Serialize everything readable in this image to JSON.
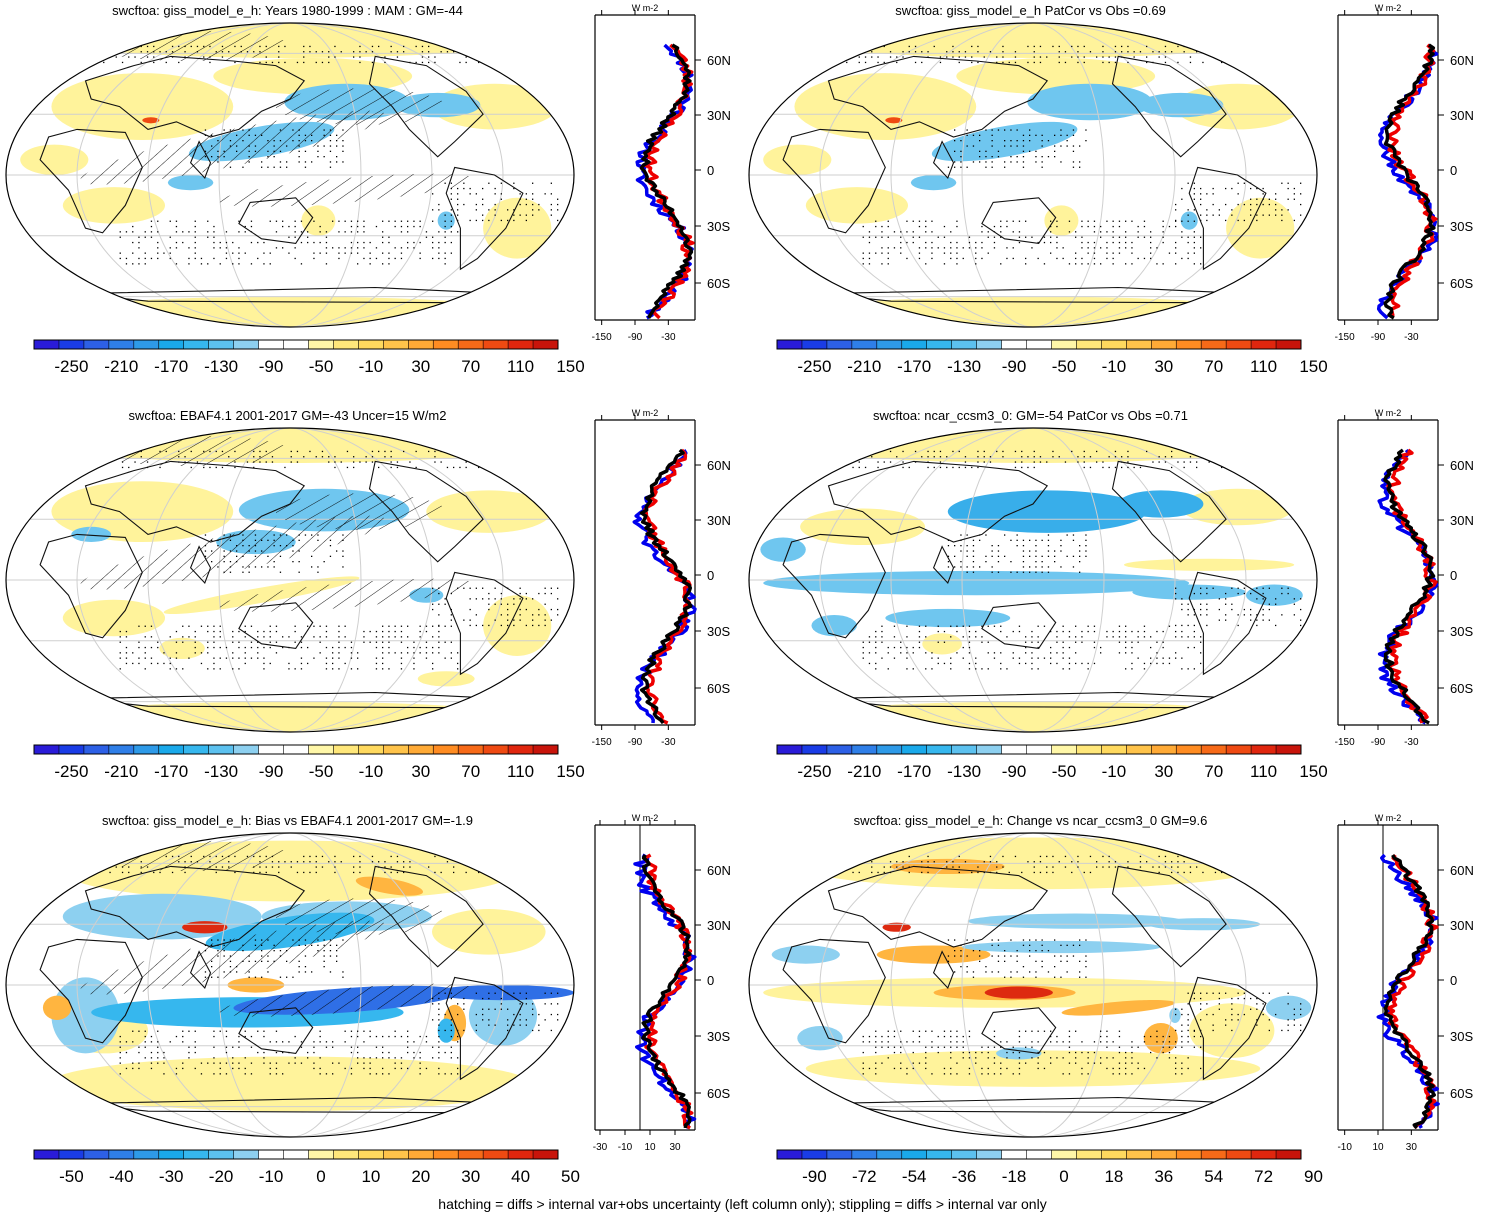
{
  "footer": "hatching = diffs > internal var+obs uncertainty (left column only); stippling = diffs > internal var only",
  "panels": [
    {
      "title": "swcftoa: giss_model_e_h: Years 1980-1999 : MAM : GM=-44",
      "palette": "full",
      "hatch": true,
      "style": "model",
      "colorbar_labels": [
        "-250",
        "-210",
        "-170",
        "-130",
        "-90",
        "-50",
        "-10",
        "30",
        "70",
        "110",
        "150"
      ],
      "profile": {
        "ticks": [
          "-150",
          "-90",
          "-30"
        ],
        "unit": "W m-2",
        "zero_line": false,
        "lat_labels": [
          "60N",
          "30N",
          "0",
          "30S",
          "60S"
        ]
      }
    },
    {
      "title": "swcftoa: giss_model_e_h PatCor vs Obs =0.69",
      "palette": "full",
      "hatch": false,
      "style": "model",
      "colorbar_labels": [
        "-250",
        "-210",
        "-170",
        "-130",
        "-90",
        "-50",
        "-10",
        "30",
        "70",
        "110",
        "150"
      ],
      "profile": {
        "ticks": [
          "-150",
          "-90",
          "-30"
        ],
        "unit": "W m-2",
        "zero_line": false,
        "lat_labels": [
          "60N",
          "30N",
          "0",
          "30S",
          "60S"
        ]
      }
    },
    {
      "title": "swcftoa: EBAF4.1 2001-2017 GM=-43 Uncer=15 W/m2",
      "palette": "full",
      "hatch": true,
      "style": "obs",
      "colorbar_labels": [
        "-250",
        "-210",
        "-170",
        "-130",
        "-90",
        "-50",
        "-10",
        "30",
        "70",
        "110",
        "150"
      ],
      "profile": {
        "ticks": [
          "-150",
          "-90",
          "-30"
        ],
        "unit": "W m-2",
        "zero_line": false,
        "lat_labels": [
          "60N",
          "30N",
          "0",
          "30S",
          "60S"
        ]
      }
    },
    {
      "title": "swcftoa: ncar_ccsm3_0: GM=-54 PatCor vs Obs =0.71",
      "palette": "full",
      "hatch": false,
      "style": "ncar",
      "colorbar_labels": [
        "-250",
        "-210",
        "-170",
        "-130",
        "-90",
        "-50",
        "-10",
        "30",
        "70",
        "110",
        "150"
      ],
      "profile": {
        "ticks": [
          "-150",
          "-90",
          "-30"
        ],
        "unit": "W m-2",
        "zero_line": false,
        "lat_labels": [
          "60N",
          "30N",
          "0",
          "30S",
          "60S"
        ]
      }
    },
    {
      "title": "swcftoa: giss_model_e_h: Bias vs EBAF4.1 2001-2017 GM=-1.9",
      "palette": "diff",
      "hatch": true,
      "style": "bias",
      "colorbar_labels": [
        "-50",
        "-40",
        "-30",
        "-20",
        "-10",
        "0",
        "10",
        "20",
        "30",
        "40",
        "50"
      ],
      "profile": {
        "ticks": [
          "-30",
          "-10",
          "10",
          "30"
        ],
        "unit": "W m-2",
        "zero_line": true,
        "lat_labels": [
          "60N",
          "30N",
          "0",
          "30S",
          "60S"
        ]
      }
    },
    {
      "title": "swcftoa: giss_model_e_h: Change vs ncar_ccsm3_0 GM=9.6",
      "palette": "diff",
      "hatch": false,
      "style": "change",
      "colorbar_labels": [
        "-90",
        "-72",
        "-54",
        "-36",
        "-18",
        "0",
        "18",
        "36",
        "54",
        "72",
        "90"
      ],
      "profile": {
        "ticks": [
          "-10",
          "10",
          "30"
        ],
        "unit": "W m-2",
        "zero_line": true,
        "lat_labels": [
          "60N",
          "30N",
          "0",
          "30S",
          "60S"
        ]
      }
    }
  ],
  "colors": {
    "full_palette": [
      "#2a1bd8",
      "#1a3ce6",
      "#2d60e6",
      "#2f7fe8",
      "#2e9ae8",
      "#1aa9ea",
      "#36b7ee",
      "#5cc1ef",
      "#8dd0f0",
      "#ffffff",
      "#ffffff",
      "#fff7a8",
      "#ffe77a",
      "#ffd95e",
      "#ffc34a",
      "#ffaa36",
      "#ff8c22",
      "#f76a18",
      "#ef4a12",
      "#e0260e",
      "#c8140b"
    ],
    "diff_palette": [
      "#2a1bd8",
      "#1a3ce6",
      "#2d60e6",
      "#2f7fe8",
      "#2e9ae8",
      "#1aa9ea",
      "#36b7ee",
      "#5cc1ef",
      "#8dd0f0",
      "#ffffff",
      "#ffffff",
      "#fff7a8",
      "#ffe77a",
      "#ffd95e",
      "#ffc34a",
      "#ffaa36",
      "#ff8c22",
      "#f76a18",
      "#ef4a12",
      "#e0260e",
      "#c8140b"
    ],
    "model_line": "#000000",
    "obs_line": "#0000ee",
    "alt_line": "#ee0000"
  }
}
